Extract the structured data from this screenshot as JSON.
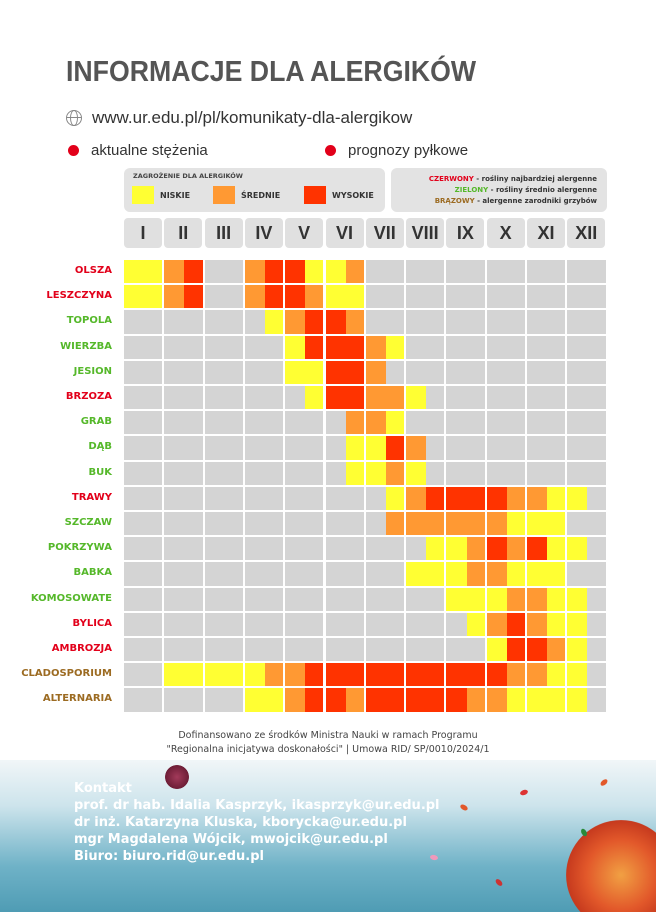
{
  "title": "INFORMACJE DLA ALERGIKÓW",
  "url": "www.ur.edu.pl/pl/komunikaty-dla-alergikow",
  "icons": {
    "globe": "globe-icon"
  },
  "legend_dots": {
    "current": "aktualne stężenia",
    "forecast": "prognozy pyłkowe"
  },
  "threat": {
    "heading": "ZAGROŻENIE DLA ALERGIKÓW",
    "low": "NISKIE",
    "medium": "ŚREDNIE",
    "high": "WYSOKIE"
  },
  "colors": {
    "low": "#ffff33",
    "medium": "#ff9933",
    "high": "#ff3300",
    "none": "#d4d4d4",
    "red": "#e2001a",
    "green": "#55b82a",
    "brown": "#9c6b22",
    "grey": "#d4d4d4"
  },
  "plant_legend": [
    {
      "key": "CZERWONY",
      "text": " - rośliny najbardziej alergenne",
      "color": "red"
    },
    {
      "key": "ZIELONY",
      "text": " - rośliny średnio alergenne",
      "color": "green"
    },
    {
      "key": "BRĄZOWY",
      "text": " - alergenne zarodniki grzybów",
      "color": "brown"
    }
  ],
  "months": [
    "I",
    "II",
    "III",
    "IV",
    "V",
    "VI",
    "VII",
    "VIII",
    "IX",
    "X",
    "XI",
    "XII"
  ],
  "plants": [
    {
      "name": "OLSZA",
      "color": "red",
      "levels": "11230023311200000000000000000000000000000000000000"
    },
    {
      "name": "LESZCZYNA",
      "color": "red",
      "levels": "11230023321100000000000000000000000000000000000000"
    },
    {
      "name": "TOPOLA",
      "color": "green",
      "levels": "00000001233200000000000000000000000000000000000000"
    },
    {
      "name": "WIERZBA",
      "color": "green",
      "levels": "00000000133321000000000000000000000000000000000000"
    },
    {
      "name": "JESION",
      "color": "green",
      "levels": "00000000113320000000000000000000000000000000000000"
    },
    {
      "name": "BRZOZA",
      "color": "red",
      "levels": "00000000013322100000000000000000000000000000000000"
    },
    {
      "name": "GRAB",
      "color": "green",
      "levels": "00000000000221000000000000000000000000000000000000"
    },
    {
      "name": "DĄB",
      "color": "green",
      "levels": "00000000000113200000000000000000000000000000000000"
    },
    {
      "name": "BUK",
      "color": "green",
      "levels": "00000000000112100000000000000000000000000000000000"
    },
    {
      "name": "TRAWY",
      "color": "red",
      "levels": "00000000000001233332211000000000000000000000000000"
    },
    {
      "name": "SZCZAW",
      "color": "green",
      "levels": "00000000000002222221110000000000000000000000000000"
    },
    {
      "name": "POKRZYWA",
      "color": "green",
      "levels": "00000000000000011232311000000000000000000000000000"
    },
    {
      "name": "BABKA",
      "color": "green",
      "levels": "00000000000000111221110000000000000000000000000000"
    },
    {
      "name": "KOMOSOWATE",
      "color": "green",
      "levels": "00000000000000001112211000000000000000000000000000"
    },
    {
      "name": "BYLICA",
      "color": "red",
      "levels": "00000000000000000123211000000000000000000000000000"
    },
    {
      "name": "AMBROZJA",
      "color": "red",
      "levels": "00000000000000000013321000000000000000000000000000"
    },
    {
      "name": "CLADOSPORIUM",
      "color": "brown",
      "levels": "00111112233333333332211000000000000000000000000000"
    },
    {
      "name": "ALTERNARIA",
      "color": "brown",
      "levels": "00000011233233333221111000000000000000000000000000"
    }
  ],
  "footer": {
    "line1": "Dofinansowano ze środków Ministra Nauki w ramach Programu",
    "line2": "\"Regionalna inicjatywa doskonałości\"  | Umowa RID/ SP/0010/2024/1"
  },
  "contact": {
    "heading": "Kontakt",
    "lines": [
      "prof. dr hab. Idalia Kasprzyk, ikasprzyk@ur.edu.pl",
      "dr inż. Katarzyna Kluska, kborycka@ur.edu.pl",
      "mgr Magdalena Wójcik, mwojcik@ur.edu.pl",
      "Biuro: biuro.rid@ur.edu.pl"
    ]
  }
}
